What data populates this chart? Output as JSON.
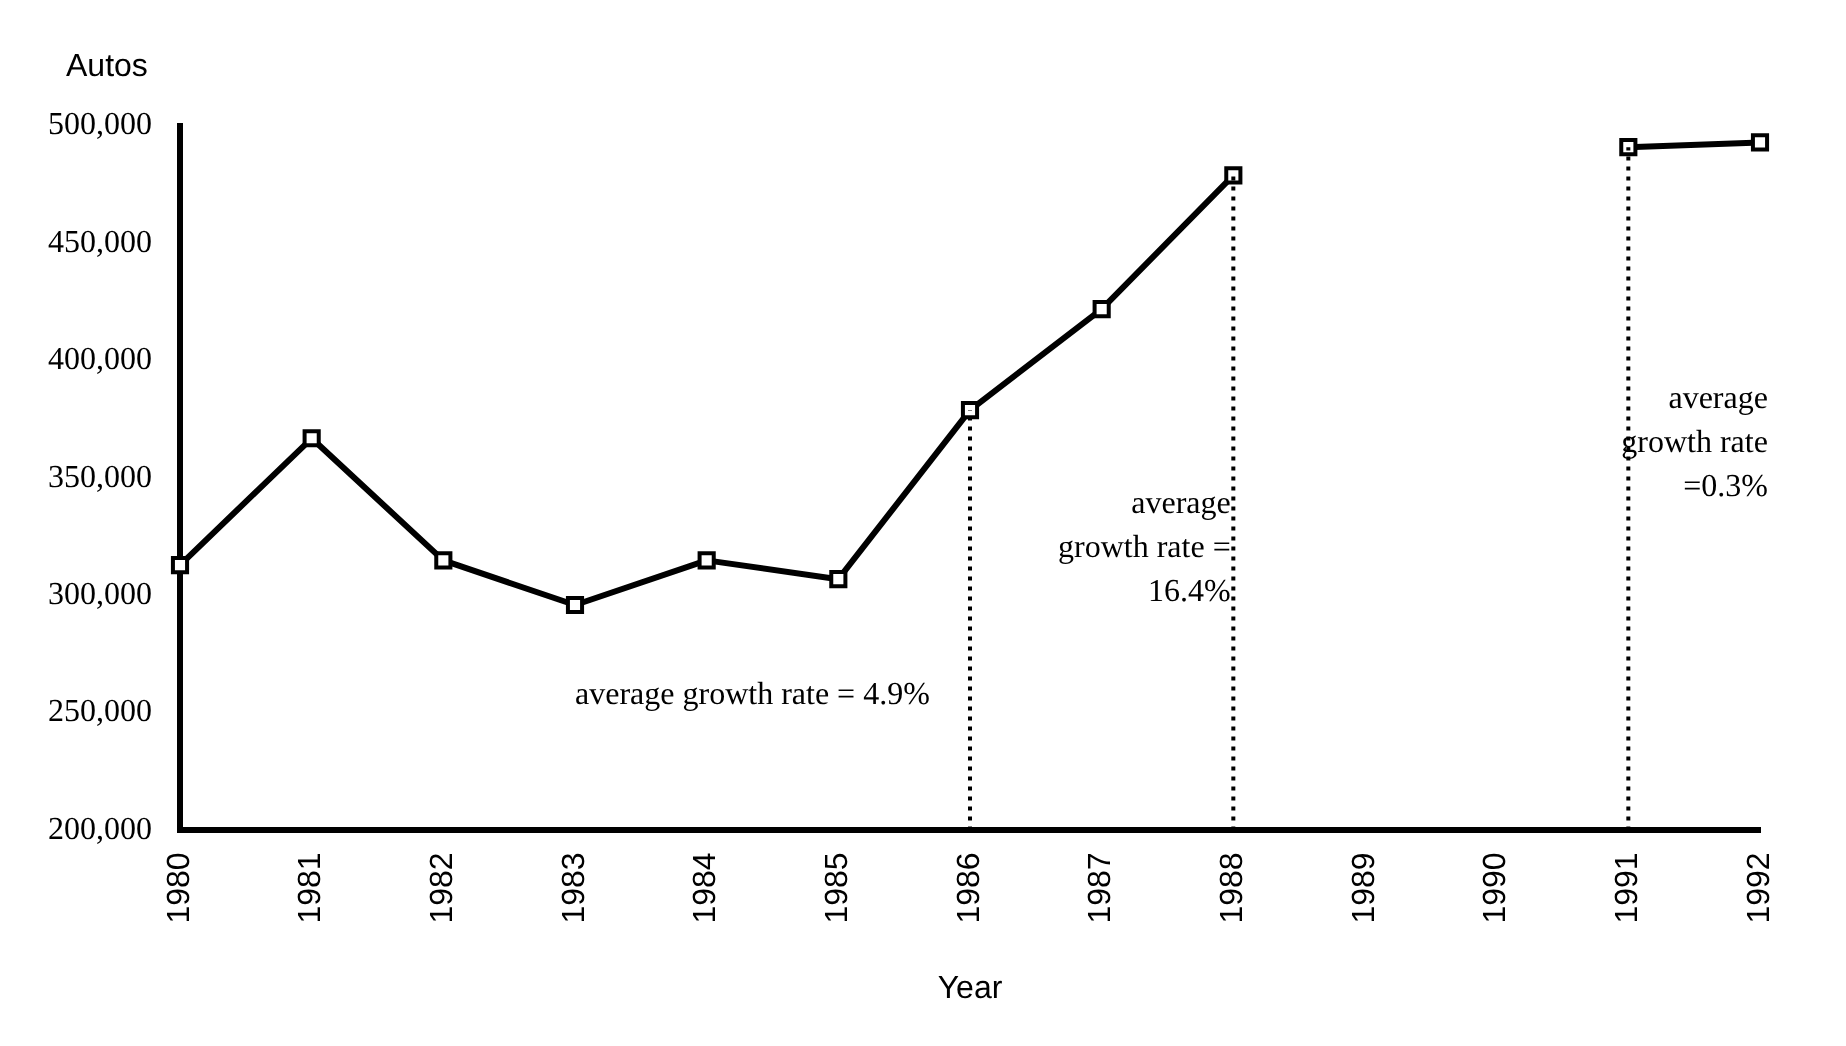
{
  "chart_data": {
    "type": "line",
    "ylabel": "Autos",
    "xlabel": "Year",
    "categories": [
      "1980",
      "1981",
      "1982",
      "1983",
      "1984",
      "1985",
      "1986",
      "1987",
      "1988",
      "1989",
      "1990",
      "1991",
      "1992"
    ],
    "series": [
      {
        "color": "#000000",
        "values": [
          313000,
          367000,
          315000,
          296000,
          315000,
          307000,
          379000,
          422000,
          479000,
          null,
          null,
          491000,
          493000
        ]
      }
    ],
    "ylim": [
      200000,
      500000
    ],
    "yticks": [
      {
        "value": 200000,
        "label": "200,000"
      },
      {
        "value": 250000,
        "label": "250,000"
      },
      {
        "value": 300000,
        "label": "300,000"
      },
      {
        "value": 350000,
        "label": "350,000"
      },
      {
        "value": 400000,
        "label": "400,000"
      },
      {
        "value": 450000,
        "label": "450,000"
      },
      {
        "value": 500000,
        "label": "500,000"
      }
    ],
    "ref_lines": [
      {
        "axis": "x",
        "value": "1986",
        "line_style": "dotted",
        "color": "#000000"
      },
      {
        "axis": "x",
        "value": "1988",
        "line_style": "dotted",
        "color": "#000000"
      },
      {
        "axis": "x",
        "value": "1991",
        "line_style": "dotted",
        "color": "#000000"
      }
    ],
    "annotations": [
      "average growth rate = 4.9%",
      "average growth rate = 16.4%",
      "average growth rate =0.3%"
    ],
    "grid": false,
    "legend": false,
    "marker": "square",
    "line_style": "solid"
  }
}
